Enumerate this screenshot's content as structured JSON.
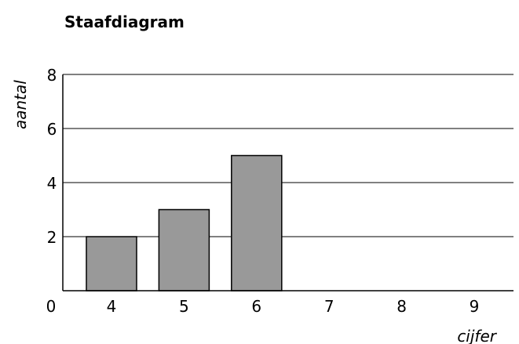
{
  "chart_data": {
    "type": "bar",
    "title": "Staafdiagram",
    "xlabel": "cijfer",
    "ylabel": "aantal",
    "categories": [
      "4",
      "5",
      "6",
      "7",
      "8",
      "9"
    ],
    "values": [
      2,
      3,
      5,
      0,
      0,
      0
    ],
    "origin_label": "0",
    "yticks": [
      2,
      4,
      6,
      8
    ],
    "ylim": [
      0,
      8
    ],
    "grid": true,
    "colors": {
      "bar_fill": "#999999",
      "bar_stroke": "#000000",
      "grid": "#000000",
      "axis": "#000000"
    }
  }
}
